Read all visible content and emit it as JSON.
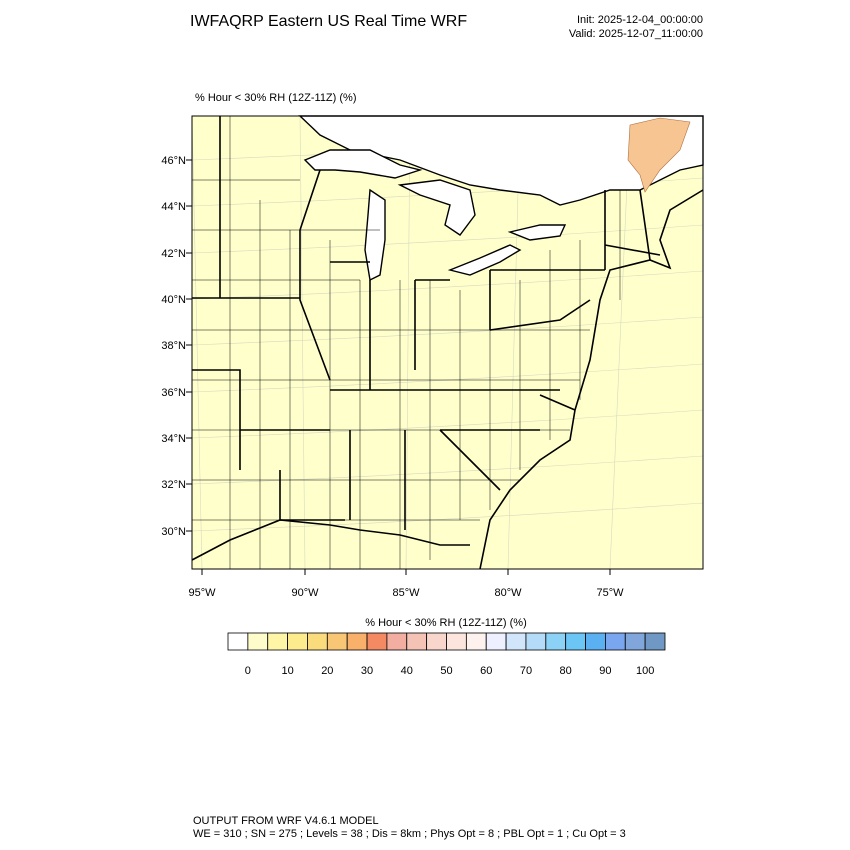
{
  "header": {
    "title": "IWFAQRP Eastern US Real Time WRF",
    "init": "Init: 2025-12-04_00:00:00",
    "valid": "Valid: 2025-12-07_11:00:00"
  },
  "map": {
    "field_label": "% Hour < 30% RH (12Z-11Z)   (%)",
    "lat_labels": [
      "46°N",
      "44°N",
      "42°N",
      "40°N",
      "38°N",
      "36°N",
      "34°N",
      "32°N",
      "30°N"
    ],
    "lon_labels": [
      "95°W",
      "90°W",
      "85°W",
      "80°W",
      "75°W"
    ]
  },
  "colorbar": {
    "title": "% Hour < 30% RH (12Z-11Z)  (%)",
    "colors": [
      "#ffffff",
      "#fffccc",
      "#fef5a6",
      "#fcec8e",
      "#fbdc7c",
      "#f9c676",
      "#f8b06a",
      "#f38a64",
      "#f2aea0",
      "#f5c3b6",
      "#f8d6cc",
      "#fbe5dc",
      "#fdf2ee",
      "#eef0ff",
      "#d2e6fb",
      "#b4dcf8",
      "#8bd2f6",
      "#6cc6f5",
      "#5ab0f0",
      "#7aa6f0",
      "#80a6dc",
      "#6f99c4"
    ],
    "ticks": [
      0,
      10,
      20,
      30,
      40,
      50,
      60,
      70,
      80,
      90,
      100
    ]
  },
  "footer": {
    "line1": "OUTPUT FROM WRF V4.6.1 MODEL",
    "line2": "WE = 310 ; SN = 275 ; Levels = 38 ; Dis = 8km ; Phys Opt = 8 ; PBL Opt = 1 ; Cu Opt = 3"
  }
}
